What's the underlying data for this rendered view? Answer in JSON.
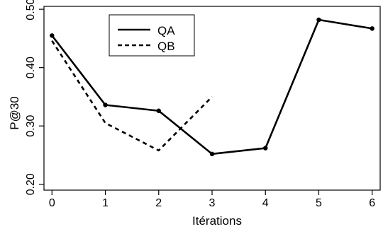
{
  "chart_data": {
    "type": "line",
    "title": "",
    "xlabel": "Itérations",
    "ylabel": "P@30",
    "xlim": [
      -0.15,
      6.15
    ],
    "ylim": [
      0.19,
      0.505
    ],
    "x_ticks": [
      0,
      1,
      2,
      3,
      4,
      5,
      6
    ],
    "x_tick_labels": [
      "0",
      "1",
      "2",
      "3",
      "4",
      "5",
      "6"
    ],
    "y_ticks": [
      0.2,
      0.3,
      0.4,
      0.5
    ],
    "y_tick_labels": [
      "0.20",
      "0.30",
      "0.40",
      "0.50"
    ],
    "grid": false,
    "legend_position": "top-left",
    "series": [
      {
        "name": "QA",
        "style": "solid",
        "markers": true,
        "x": [
          0,
          1,
          2,
          3,
          4,
          5,
          6
        ],
        "y": [
          0.455,
          0.336,
          0.326,
          0.252,
          0.262,
          0.482,
          0.467
        ]
      },
      {
        "name": "QB",
        "style": "dashed",
        "markers": false,
        "x": [
          0,
          1,
          2,
          3
        ],
        "y": [
          0.446,
          0.305,
          0.258,
          0.35
        ]
      }
    ]
  }
}
